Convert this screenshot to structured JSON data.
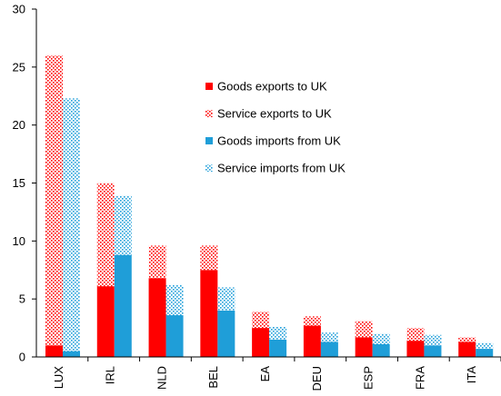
{
  "chart_data": {
    "type": "bar",
    "stacked": true,
    "categories": [
      "LUX",
      "IRL",
      "NLD",
      "BEL",
      "EA",
      "DEU",
      "ESP",
      "FRA",
      "ITA"
    ],
    "ylim": [
      0,
      30
    ],
    "yticks": [
      0,
      5,
      10,
      15,
      20,
      25,
      30
    ],
    "grid": false,
    "legend_position": "upper-right",
    "series": [
      {
        "name": "Goods exports to UK",
        "group": "exports",
        "pattern": "solid",
        "color": "#ff0000",
        "values": [
          1.0,
          6.1,
          6.8,
          7.5,
          2.5,
          2.7,
          1.7,
          1.4,
          1.3
        ]
      },
      {
        "name": "Service exports to UK",
        "group": "exports",
        "pattern": "dots",
        "color": "#ff0000",
        "values": [
          25.0,
          8.9,
          2.8,
          2.1,
          1.4,
          0.8,
          1.4,
          1.1,
          0.4
        ]
      },
      {
        "name": "Goods imports from UK",
        "group": "imports",
        "pattern": "solid",
        "color": "#1f9ed8",
        "values": [
          0.5,
          8.8,
          3.6,
          4.0,
          1.5,
          1.3,
          1.1,
          1.0,
          0.7
        ]
      },
      {
        "name": "Service imports from UK",
        "group": "imports",
        "pattern": "dots",
        "color": "#1f9ed8",
        "values": [
          21.8,
          5.1,
          2.6,
          2.0,
          1.1,
          0.8,
          0.9,
          0.9,
          0.5
        ]
      }
    ]
  }
}
